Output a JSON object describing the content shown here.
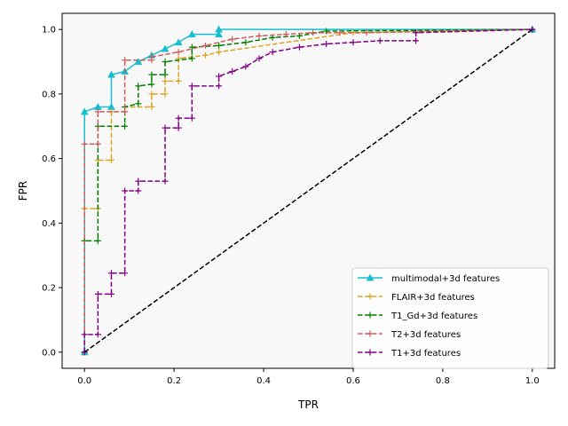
{
  "chart_data": {
    "type": "line",
    "title": "",
    "xlabel": "TPR",
    "ylabel": "FPR",
    "xlim": [
      -0.05,
      1.05
    ],
    "ylim": [
      -0.05,
      1.05
    ],
    "xticks": [
      "0.0",
      "0.2",
      "0.4",
      "0.6",
      "0.8",
      "1.0"
    ],
    "yticks": [
      "0.0",
      "0.2",
      "0.4",
      "0.6",
      "0.8",
      "1.0"
    ],
    "grid": false,
    "background": "#f8f8f8",
    "legend_position": "lower-right",
    "series": [
      {
        "name": "multimodal+3d features",
        "color": "#17becf",
        "linestyle": "solid",
        "marker": "triangle",
        "x": [
          0.0,
          0.0,
          0.03,
          0.06,
          0.06,
          0.09,
          0.12,
          0.15,
          0.18,
          0.21,
          0.24,
          0.3,
          0.3,
          1.0
        ],
        "y": [
          0.0,
          0.745,
          0.76,
          0.76,
          0.86,
          0.87,
          0.9,
          0.92,
          0.94,
          0.96,
          0.985,
          0.985,
          1.0,
          1.0
        ]
      },
      {
        "name": "FLAIR+3d features",
        "color": "#daa520",
        "linestyle": "dashed",
        "marker": "plus",
        "x": [
          0.0,
          0.0,
          0.03,
          0.03,
          0.06,
          0.06,
          0.09,
          0.09,
          0.15,
          0.15,
          0.18,
          0.18,
          0.21,
          0.21,
          0.27,
          0.3,
          0.6,
          1.0
        ],
        "y": [
          0.0,
          0.445,
          0.445,
          0.595,
          0.595,
          0.745,
          0.745,
          0.76,
          0.76,
          0.8,
          0.8,
          0.84,
          0.84,
          0.91,
          0.92,
          0.93,
          0.99,
          1.0
        ]
      },
      {
        "name": "T1_Gd+3d features",
        "color": "#008000",
        "linestyle": "dashed",
        "marker": "plus",
        "x": [
          0.0,
          0.0,
          0.03,
          0.03,
          0.09,
          0.09,
          0.12,
          0.12,
          0.15,
          0.15,
          0.18,
          0.18,
          0.24,
          0.24,
          0.3,
          0.36,
          0.42,
          0.48,
          0.54,
          1.0
        ],
        "y": [
          0.0,
          0.345,
          0.345,
          0.7,
          0.7,
          0.76,
          0.77,
          0.825,
          0.83,
          0.86,
          0.86,
          0.9,
          0.91,
          0.945,
          0.95,
          0.96,
          0.975,
          0.98,
          0.995,
          1.0
        ]
      },
      {
        "name": "T2+3d features",
        "color": "#cd5c5c",
        "linestyle": "dashed",
        "marker": "plus",
        "x": [
          0.0,
          0.0,
          0.03,
          0.03,
          0.09,
          0.09,
          0.15,
          0.15,
          0.21,
          0.27,
          0.33,
          0.39,
          0.45,
          0.51,
          0.57,
          0.63,
          1.0
        ],
        "y": [
          0.0,
          0.645,
          0.645,
          0.745,
          0.745,
          0.905,
          0.905,
          0.915,
          0.93,
          0.95,
          0.97,
          0.98,
          0.985,
          0.99,
          0.99,
          0.99,
          1.0
        ]
      },
      {
        "name": "T1+3d features",
        "color": "#800080",
        "linestyle": "dashed",
        "marker": "plus",
        "x": [
          0.0,
          0.0,
          0.03,
          0.03,
          0.06,
          0.06,
          0.09,
          0.09,
          0.12,
          0.12,
          0.18,
          0.18,
          0.21,
          0.21,
          0.24,
          0.24,
          0.3,
          0.3,
          0.33,
          0.36,
          0.39,
          0.42,
          0.48,
          0.54,
          0.6,
          0.66,
          0.74,
          0.74,
          1.0
        ],
        "y": [
          0.0,
          0.055,
          0.055,
          0.18,
          0.18,
          0.245,
          0.245,
          0.5,
          0.5,
          0.53,
          0.53,
          0.695,
          0.695,
          0.725,
          0.725,
          0.825,
          0.825,
          0.855,
          0.87,
          0.885,
          0.91,
          0.93,
          0.945,
          0.955,
          0.96,
          0.965,
          0.965,
          0.99,
          1.0
        ]
      },
      {
        "name": "",
        "color": "#000000",
        "linestyle": "dashed",
        "marker": "none",
        "x": [
          0.0,
          1.0
        ],
        "y": [
          0.0,
          1.0
        ]
      }
    ]
  }
}
